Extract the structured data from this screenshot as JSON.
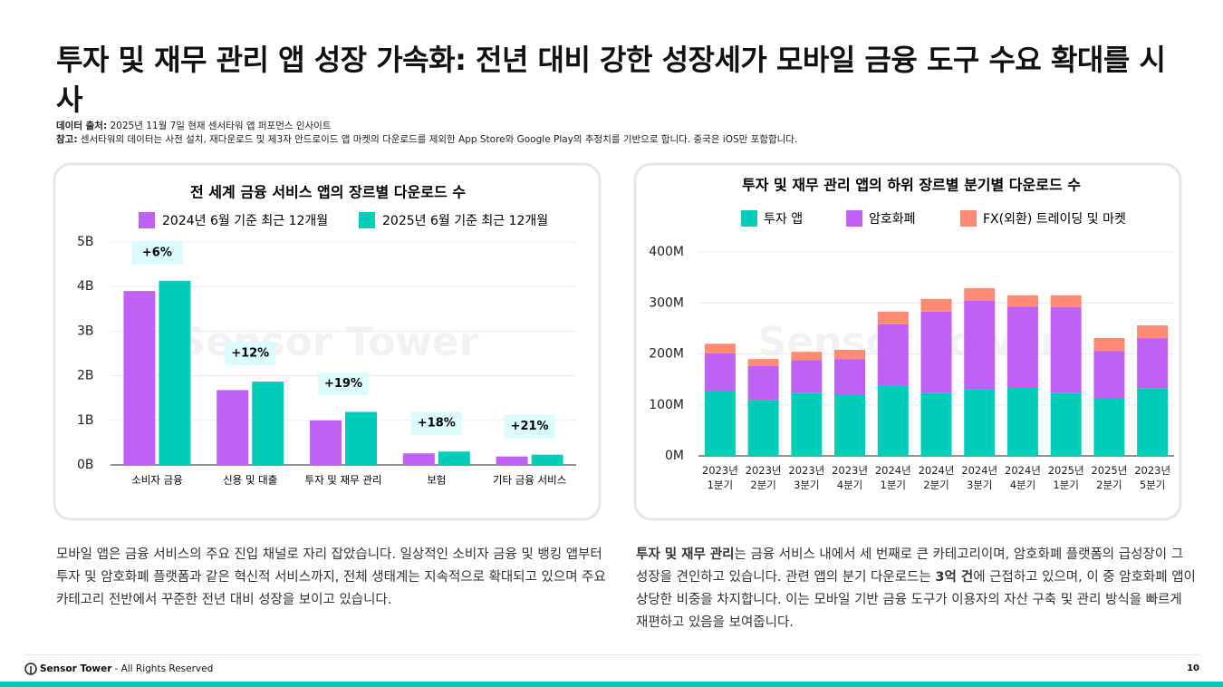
{
  "header": {
    "title": "투자 및 재무 관리 앱 성장 가속화: 전년 대비 강한 성장세가 모바일 금융 도구 수요 확대를 시사",
    "source_label": "데이터 출처:",
    "source": "2025년 11월 7일 현재 센서타워 앱 퍼포먼스 인사이트",
    "note_label": "참고:",
    "note": "센서타워의 데이터는 사전 설치, 재다운로드 및 제3자 안드로이드 앱 마켓의 다운로드를 제외한 App Store와 Google Play의 추정치를 기반으로 합니다. 중국은 iOS만 포함합니다."
  },
  "brand": "Sensor Tower",
  "chart_data": [
    {
      "type": "grouped_bar",
      "title": "전 세계 금융 서비스 앱의 장르별 다운로드 수",
      "categories": [
        "소비자 금융",
        "신용 및 대출",
        "투자 및 재무 관리",
        "보험",
        "기타 금융 서비스"
      ],
      "series": [
        {
          "name": "2024년 6월 기준 최근 12개월",
          "color": "#c061f5",
          "values": [
            3.9,
            1.68,
            1.0,
            0.26,
            0.19
          ]
        },
        {
          "name": "2025년 6월 기준 최근 12개월",
          "color": "#00cdb8",
          "values": [
            4.13,
            1.87,
            1.19,
            0.3,
            0.23
          ]
        }
      ],
      "annotations": [
        "+6%",
        "+12%",
        "+19%",
        "+18%",
        "+21%"
      ],
      "ylim": [
        0,
        5
      ],
      "yticks": [
        {
          "value": 0,
          "label": "0B"
        },
        {
          "value": 1,
          "label": "1B"
        },
        {
          "value": 2,
          "label": "2B"
        },
        {
          "value": 3,
          "label": "3B"
        },
        {
          "value": 4,
          "label": "4B"
        },
        {
          "value": 5,
          "label": "5B"
        }
      ],
      "grid": true
    },
    {
      "type": "stacked_bar",
      "title": "투자 및 재무 관리 앱의 하위 장르별 분기별 다운로드 수",
      "categories": [
        "2023년 1분기",
        "2023년 2분기",
        "2023년 3분기",
        "2023년 4분기",
        "2024년 1분기",
        "2024년 2분기",
        "2024년 3분기",
        "2024년 4분기",
        "2025년 1분기",
        "2025년 2분기",
        "2023년 5분기"
      ],
      "series": [
        {
          "name": "투자 앱",
          "color": "#00cdb8",
          "values": [
            128,
            110,
            124,
            119,
            137,
            124,
            130,
            135,
            124,
            112,
            133
          ]
        },
        {
          "name": "암호화폐",
          "color": "#c061f5",
          "values": [
            73,
            66,
            64,
            71,
            121,
            159,
            174,
            158,
            168,
            94,
            98
          ]
        },
        {
          "name": "FX(외환) 트레이딩 및 마켓",
          "color": "#ff8a73",
          "values": [
            19,
            14,
            16,
            18,
            25,
            25,
            25,
            22,
            23,
            25,
            25
          ]
        }
      ],
      "ylim": [
        0,
        400
      ],
      "yticks": [
        {
          "value": 0,
          "label": "0M"
        },
        {
          "value": 100,
          "label": "100M"
        },
        {
          "value": 200,
          "label": "200M"
        },
        {
          "value": 300,
          "label": "300M"
        },
        {
          "value": 400,
          "label": "400M"
        }
      ],
      "grid": true
    }
  ],
  "body": {
    "left": "모바일 앱은 금융 서비스의 주요 진입 채널로 자리 잡았습니다. 일상적인 소비자 금융 및 뱅킹 앱부터 투자 및 암호화폐 플랫폼과 같은 혁신적 서비스까지, 전체 생태계는 지속적으로 확대되고 있으며 주요 카테고리 전반에서 꾸준한 전년 대비 성장을 보이고 있습니다.",
    "right": [
      "투자 및 재무 관리",
      "는 금융 서비스 내에서 세 번째로 큰 카테고리이며, 암호화폐 플랫폼의 급성장이 그 성장을 견인하고 있습니다. 관련 앱의 분기 다운로드는 ",
      "3억 건",
      "에 근접하고 있으며, 이 중 암호화폐 앱이 상당한 비중을 차지합니다. 이는 모바일 기반 금융 도구가 이용자의 자산 구축 및 관리 방식을 빠르게 재편하고 있음을 보여줍니다."
    ]
  },
  "footer": {
    "rights": "- All Rights Reserved",
    "page": "10"
  }
}
